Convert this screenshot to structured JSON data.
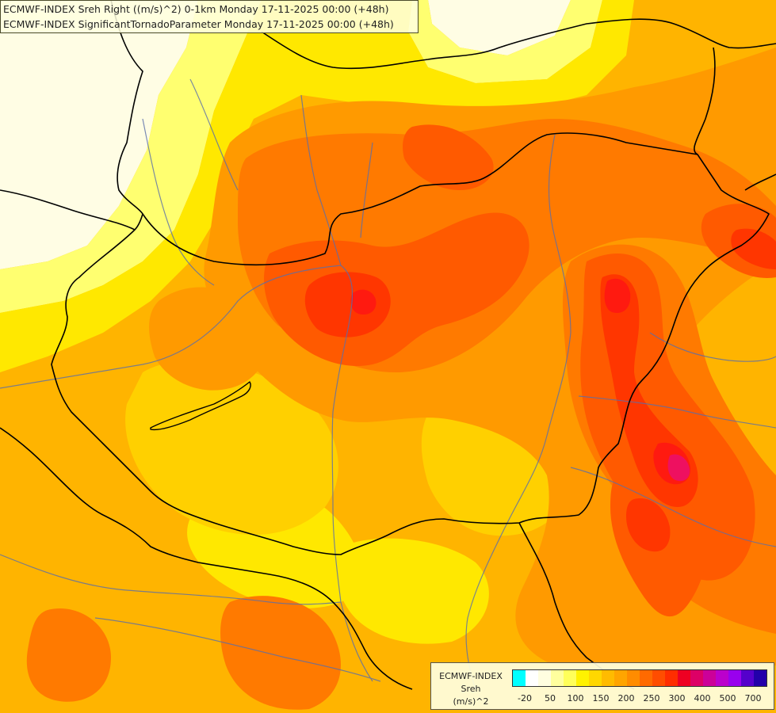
{
  "title": {
    "line1": "ECMWF-INDEX Sreh Right ((m/s)^2) 0-1km Monday 17-11-2025 00:00 (+48h)",
    "line2": "ECMWF-INDEX SignificantTornadoParameter Monday 17-11-2025 00:00 (+48h)"
  },
  "legend": {
    "line1": "ECMWF-INDEX",
    "line2": "Sreh",
    "line3": "(m/s)^2",
    "swatch_colors": [
      "#00ffff",
      "#ffffff",
      "#fffee0",
      "#ffff9e",
      "#ffff5a",
      "#fff200",
      "#ffd700",
      "#ffbb00",
      "#ffa500",
      "#ff8c00",
      "#ff6a00",
      "#ff4d00",
      "#ff2d00",
      "#ee0022",
      "#dd0066",
      "#cc0099",
      "#bb00cc",
      "#9900ee",
      "#5500cc",
      "#2200aa"
    ],
    "ticks": [
      "-20",
      "50",
      "100",
      "150",
      "200",
      "250",
      "300",
      "400",
      "500",
      "700"
    ]
  },
  "colors": {
    "pale": "#fffde4",
    "light_yellow": "#ffff70",
    "yellow": "#ffe800",
    "amber": "#ffd000",
    "orange_light": "#ffb400",
    "orange": "#ff9a00",
    "orange_dark": "#ff7a00",
    "red_orange": "#ff5a00",
    "red": "#ff3600",
    "crimson": "#ff1a10",
    "magenta": "#ee1060",
    "border": "#000000",
    "river": "#5a6eaa"
  }
}
